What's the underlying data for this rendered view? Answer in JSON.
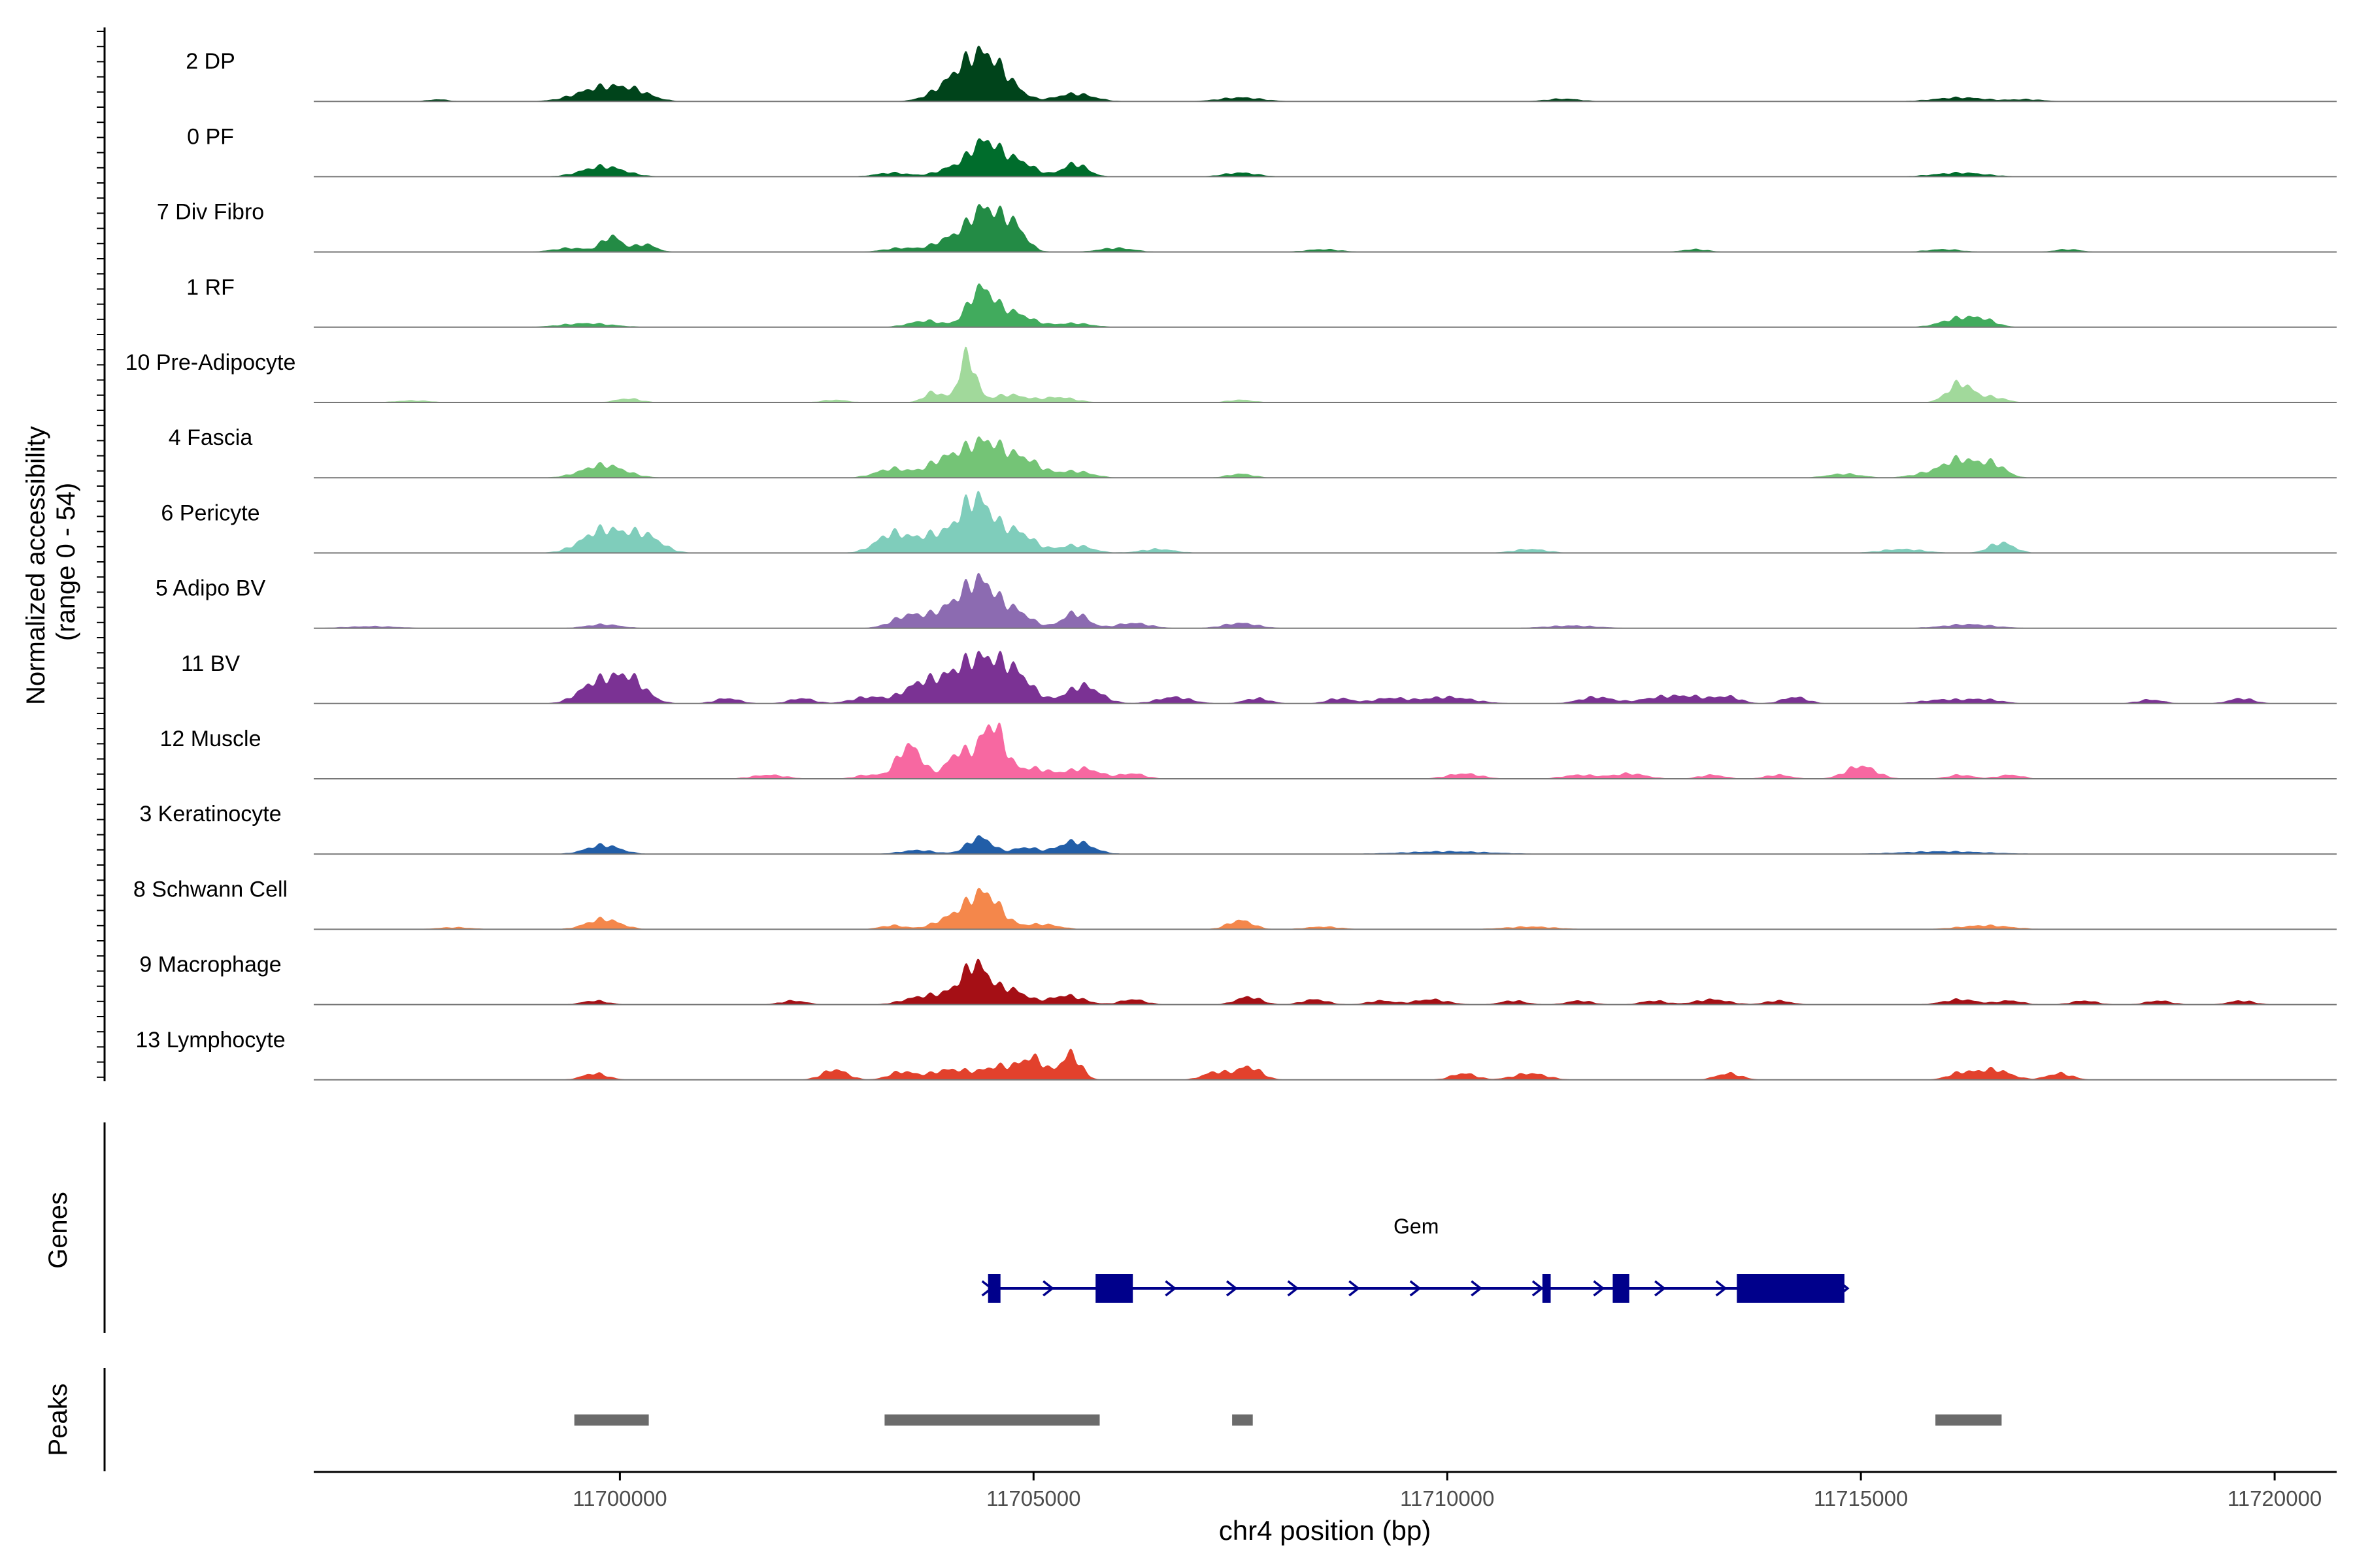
{
  "chart_data": {
    "type": "area",
    "title": "",
    "xlabel": "chr4 position (bp)",
    "ylabel_line1": "Normalized accessibility",
    "ylabel_line2": "(range 0 - 54)",
    "ylim": [
      0,
      54
    ],
    "xlim": [
      11696300,
      11720750
    ],
    "x_ticks": [
      11700000,
      11705000,
      11710000,
      11715000,
      11720000
    ],
    "x_tick_labels": [
      "11700000",
      "11705000",
      "11710000",
      "11715000",
      "11720000"
    ],
    "tracks": [
      {
        "name": "2 DP",
        "color": "#00441b",
        "peaks": [
          [
            11697800,
            1.5,
            120
          ],
          [
            11699800,
            11,
            300
          ],
          [
            11700200,
            5,
            200
          ],
          [
            11704100,
            18,
            250
          ],
          [
            11704400,
            27,
            200
          ],
          [
            11704700,
            10,
            180
          ],
          [
            11705500,
            6,
            220
          ],
          [
            11707500,
            3,
            250
          ],
          [
            11711400,
            2,
            200
          ],
          [
            11716200,
            3,
            300
          ],
          [
            11717000,
            1.5,
            200
          ]
        ]
      },
      {
        "name": "0 PF",
        "color": "#006d2c",
        "peaks": [
          [
            11699800,
            8,
            250
          ],
          [
            11703300,
            3,
            200
          ],
          [
            11704000,
            6,
            180
          ],
          [
            11704400,
            26,
            180
          ],
          [
            11704800,
            12,
            200
          ],
          [
            11705500,
            10,
            150
          ],
          [
            11707500,
            3,
            200
          ],
          [
            11716200,
            3,
            300
          ]
        ]
      },
      {
        "name": "7 Div Fibro",
        "color": "#238b45",
        "peaks": [
          [
            11699400,
            3,
            200
          ],
          [
            11699900,
            12,
            120
          ],
          [
            11700300,
            6,
            130
          ],
          [
            11703400,
            3,
            200
          ],
          [
            11704000,
            10,
            200
          ],
          [
            11704400,
            32,
            180
          ],
          [
            11704750,
            20,
            150
          ],
          [
            11706000,
            3,
            200
          ],
          [
            11708500,
            2,
            200
          ],
          [
            11713000,
            2,
            150
          ],
          [
            11716000,
            2,
            200
          ],
          [
            11717500,
            2,
            150
          ]
        ]
      },
      {
        "name": "1 RF",
        "color": "#41ab5d",
        "peaks": [
          [
            11699600,
            3,
            300
          ],
          [
            11703700,
            5,
            200
          ],
          [
            11704350,
            26,
            150
          ],
          [
            11704700,
            12,
            250
          ],
          [
            11705500,
            3,
            200
          ],
          [
            11716200,
            7,
            220
          ],
          [
            11716500,
            4,
            150
          ]
        ]
      },
      {
        "name": "10 Pre-Adipocyte",
        "color": "#a1d99b",
        "peaks": [
          [
            11697500,
            1.5,
            200
          ],
          [
            11700100,
            3,
            150
          ],
          [
            11702600,
            2,
            150
          ],
          [
            11703800,
            8,
            120
          ],
          [
            11704200,
            36,
            100
          ],
          [
            11704700,
            6,
            200
          ],
          [
            11705300,
            4,
            200
          ],
          [
            11707500,
            2,
            150
          ],
          [
            11716200,
            15,
            150
          ],
          [
            11716600,
            4,
            150
          ]
        ]
      },
      {
        "name": "4 Fascia",
        "color": "#74c476",
        "peaks": [
          [
            11699800,
            10,
            250
          ],
          [
            11703300,
            7,
            200
          ],
          [
            11703900,
            12,
            200
          ],
          [
            11704400,
            28,
            250
          ],
          [
            11704900,
            12,
            200
          ],
          [
            11705500,
            5,
            200
          ],
          [
            11707500,
            3,
            150
          ],
          [
            11714800,
            3,
            200
          ],
          [
            11715800,
            3,
            200
          ],
          [
            11716200,
            14,
            200
          ],
          [
            11716600,
            10,
            150
          ]
        ]
      },
      {
        "name": "6 Pericyte",
        "color": "#7fcdbb",
        "peaks": [
          [
            11699800,
            18,
            250
          ],
          [
            11700300,
            13,
            200
          ],
          [
            11703300,
            15,
            200
          ],
          [
            11703800,
            13,
            200
          ],
          [
            11704300,
            42,
            200
          ],
          [
            11704800,
            16,
            200
          ],
          [
            11705500,
            6,
            200
          ],
          [
            11706500,
            3,
            200
          ],
          [
            11711000,
            3,
            200
          ],
          [
            11715500,
            3,
            250
          ],
          [
            11716700,
            8,
            150
          ]
        ]
      },
      {
        "name": "5 Adipo BV",
        "color": "#8c6bb1",
        "peaks": [
          [
            11697000,
            1.5,
            300
          ],
          [
            11699800,
            3,
            200
          ],
          [
            11703500,
            10,
            200
          ],
          [
            11704000,
            15,
            200
          ],
          [
            11704350,
            33,
            180
          ],
          [
            11704750,
            14,
            200
          ],
          [
            11705500,
            12,
            150
          ],
          [
            11706200,
            4,
            200
          ],
          [
            11707500,
            4,
            200
          ],
          [
            11711500,
            2,
            300
          ],
          [
            11716300,
            3,
            300
          ]
        ]
      },
      {
        "name": "11 BV",
        "color": "#7b3294",
        "peaks": [
          [
            11699700,
            15,
            200
          ],
          [
            11700100,
            20,
            200
          ],
          [
            11701300,
            4,
            150
          ],
          [
            11702200,
            4,
            150
          ],
          [
            11703000,
            5,
            200
          ],
          [
            11703600,
            12,
            200
          ],
          [
            11704000,
            15,
            250
          ],
          [
            11704400,
            30,
            250
          ],
          [
            11704800,
            18,
            200
          ],
          [
            11705600,
            14,
            200
          ],
          [
            11706700,
            5,
            200
          ],
          [
            11707700,
            4,
            150
          ],
          [
            11708700,
            4,
            150
          ],
          [
            11709300,
            4,
            200
          ],
          [
            11710000,
            5,
            300
          ],
          [
            11711800,
            5,
            200
          ],
          [
            11712600,
            5,
            250
          ],
          [
            11713000,
            4,
            200
          ],
          [
            11713400,
            5,
            150
          ],
          [
            11714200,
            5,
            150
          ],
          [
            11716000,
            3,
            250
          ],
          [
            11716500,
            3,
            200
          ],
          [
            11718500,
            3,
            150
          ],
          [
            11719600,
            4,
            150
          ]
        ]
      },
      {
        "name": "12 Muscle",
        "color": "#f768a1",
        "peaks": [
          [
            11701800,
            3,
            200
          ],
          [
            11703000,
            3,
            150
          ],
          [
            11703500,
            26,
            150
          ],
          [
            11704100,
            20,
            150
          ],
          [
            11704500,
            42,
            150
          ],
          [
            11705000,
            8,
            200
          ],
          [
            11705600,
            8,
            200
          ],
          [
            11706200,
            4,
            150
          ],
          [
            11710200,
            4,
            200
          ],
          [
            11711600,
            3,
            200
          ],
          [
            11712200,
            4,
            200
          ],
          [
            11713200,
            3,
            150
          ],
          [
            11714000,
            3,
            150
          ],
          [
            11715000,
            10,
            180
          ],
          [
            11716200,
            3,
            150
          ],
          [
            11716800,
            3,
            150
          ]
        ]
      },
      {
        "name": "3 Keratinocyte",
        "color": "#225ea8",
        "peaks": [
          [
            11699800,
            7,
            200
          ],
          [
            11703600,
            3,
            200
          ],
          [
            11704350,
            13,
            150
          ],
          [
            11704900,
            5,
            150
          ],
          [
            11705500,
            10,
            200
          ],
          [
            11710000,
            2,
            500
          ],
          [
            11716000,
            2,
            500
          ]
        ]
      },
      {
        "name": "8 Schwann Cell",
        "color": "#f4874b",
        "peaks": [
          [
            11698000,
            1.5,
            200
          ],
          [
            11699800,
            8,
            200
          ],
          [
            11703300,
            3,
            150
          ],
          [
            11704000,
            8,
            200
          ],
          [
            11704400,
            28,
            200
          ],
          [
            11705100,
            4,
            200
          ],
          [
            11707500,
            7,
            150
          ],
          [
            11708500,
            2,
            200
          ],
          [
            11711000,
            2,
            300
          ],
          [
            11716500,
            3,
            300
          ]
        ]
      },
      {
        "name": "9 Macrophage",
        "color": "#a50f15",
        "peaks": [
          [
            11699700,
            3,
            150
          ],
          [
            11702100,
            3,
            150
          ],
          [
            11703600,
            5,
            200
          ],
          [
            11704000,
            8,
            200
          ],
          [
            11704300,
            28,
            150
          ],
          [
            11704700,
            12,
            200
          ],
          [
            11705400,
            7,
            200
          ],
          [
            11706200,
            4,
            150
          ],
          [
            11707600,
            6,
            150
          ],
          [
            11708400,
            4,
            150
          ],
          [
            11709200,
            3,
            150
          ],
          [
            11709800,
            4,
            200
          ],
          [
            11710800,
            3,
            150
          ],
          [
            11711600,
            3,
            150
          ],
          [
            11712500,
            3,
            150
          ],
          [
            11713200,
            4,
            200
          ],
          [
            11714000,
            3,
            150
          ],
          [
            11716200,
            4,
            200
          ],
          [
            11716800,
            3,
            150
          ],
          [
            11717700,
            3,
            150
          ],
          [
            11718600,
            3,
            150
          ],
          [
            11719600,
            3,
            150
          ]
        ]
      },
      {
        "name": "13 Lymphocyte",
        "color": "#e2412c",
        "peaks": [
          [
            11699700,
            5,
            150
          ],
          [
            11702600,
            8,
            150
          ],
          [
            11703400,
            6,
            150
          ],
          [
            11704000,
            8,
            250
          ],
          [
            11704600,
            10,
            200
          ],
          [
            11705000,
            16,
            150
          ],
          [
            11705450,
            20,
            120
          ],
          [
            11707200,
            6,
            150
          ],
          [
            11707600,
            10,
            150
          ],
          [
            11710200,
            5,
            150
          ],
          [
            11711000,
            5,
            200
          ],
          [
            11713400,
            5,
            150
          ],
          [
            11716200,
            5,
            150
          ],
          [
            11716600,
            8,
            200
          ],
          [
            11717400,
            5,
            150
          ]
        ]
      }
    ],
    "gene_panel_label": "Genes",
    "gene": {
      "name": "Gem",
      "start": 11704450,
      "end": 11714800,
      "strand": "+",
      "exons": [
        [
          11704450,
          11704600
        ],
        [
          11705750,
          11706200
        ],
        [
          11711150,
          11711250
        ],
        [
          11712000,
          11712200
        ],
        [
          11713500,
          11714800
        ]
      ]
    },
    "peaks_panel_label": "Peaks",
    "peak_regions": [
      [
        11699450,
        11700350
      ],
      [
        11703200,
        11705800
      ],
      [
        11707400,
        11707650
      ],
      [
        11715900,
        11716700
      ]
    ]
  }
}
